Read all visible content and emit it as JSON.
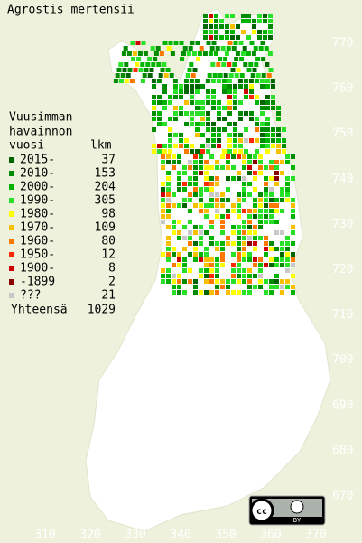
{
  "map": {
    "title": "Agrostis mertensii"
  },
  "legend": {
    "heading": [
      "Vuusimman",
      "havainnon",
      "vuosi"
    ],
    "count_header": "lkm",
    "rows": [
      {
        "label": "2015-",
        "count": "37",
        "color": "#006400"
      },
      {
        "label": "2010-",
        "count": "153",
        "color": "#008c00"
      },
      {
        "label": "2000-",
        "count": "204",
        "color": "#00b400"
      },
      {
        "label": "1990-",
        "count": "305",
        "color": "#28e028"
      },
      {
        "label": "1980-",
        "count": "98",
        "color": "#ffff00"
      },
      {
        "label": "1970-",
        "count": "109",
        "color": "#f8c000"
      },
      {
        "label": "1960-",
        "count": "80",
        "color": "#ff7800"
      },
      {
        "label": "1950-",
        "count": "12",
        "color": "#ff2800"
      },
      {
        "label": "1900-",
        "count": "8",
        "color": "#cc0000"
      },
      {
        "label": "-1899",
        "count": "2",
        "color": "#880000"
      },
      {
        "label": "???",
        "count": "21",
        "color": "#c8c8c8"
      }
    ],
    "total_label": "Yhteensä",
    "total": "1029"
  },
  "axes": {
    "y_ticks": [
      770,
      760,
      750,
      740,
      730,
      720,
      710,
      700,
      690,
      680,
      670
    ],
    "x_ticks": [
      310,
      320,
      330,
      340,
      350,
      360,
      370
    ]
  },
  "badge": {
    "label": "BY"
  }
}
